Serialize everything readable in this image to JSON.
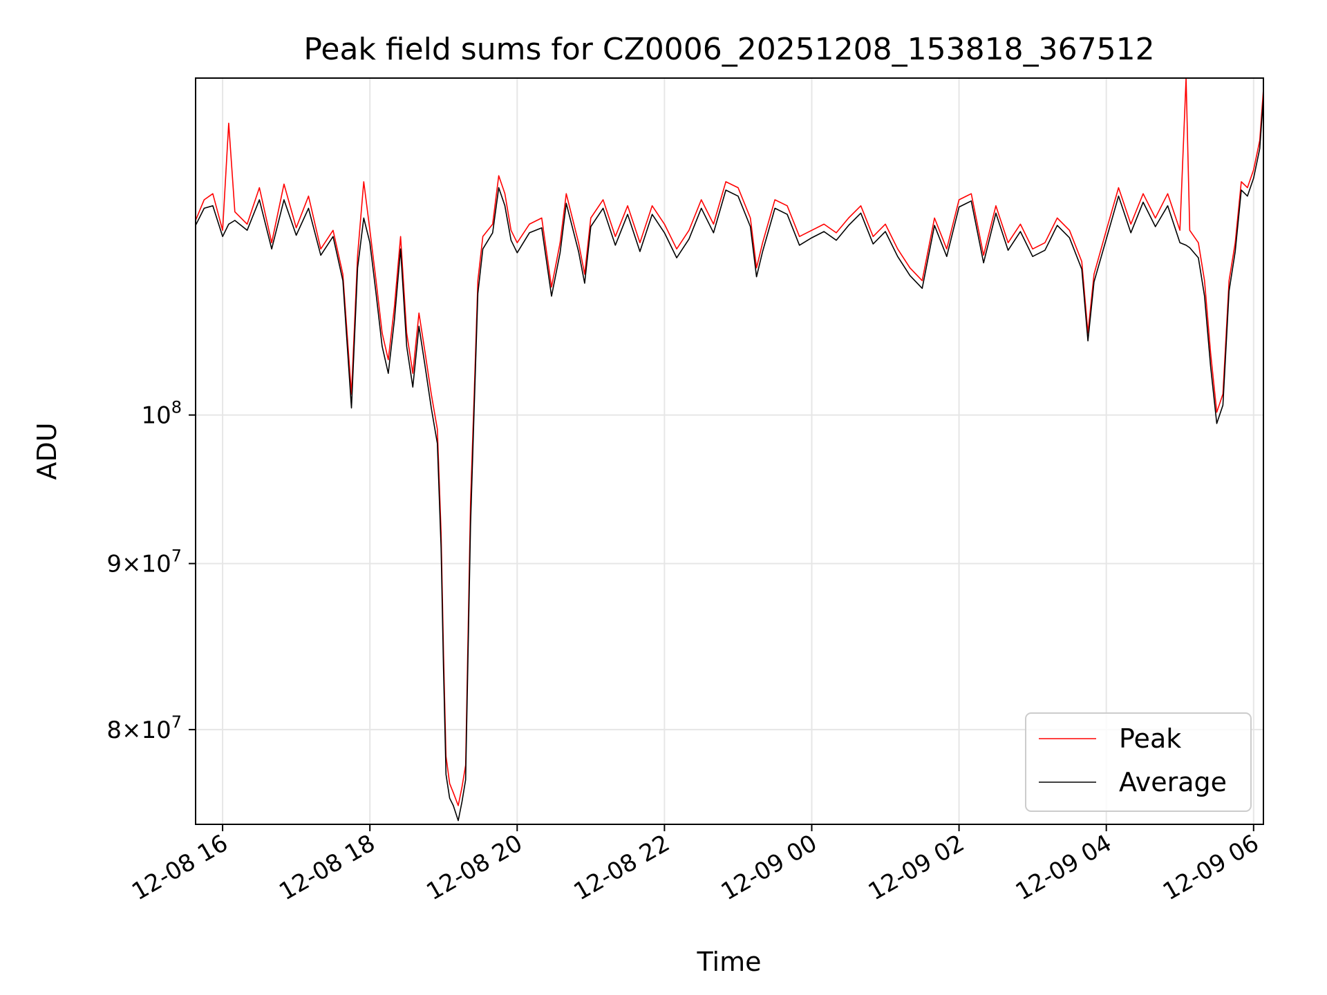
{
  "chart_data": {
    "type": "line",
    "title": "Peak field sums for CZ0006_20251208_153818_367512",
    "xlabel": "Time",
    "ylabel": "ADU",
    "yscale": "log",
    "x_ticks": [
      "12-08 16",
      "12-08 18",
      "12-08 20",
      "12-08 22",
      "12-09 00",
      "12-09 02",
      "12-09 04",
      "12-09 06"
    ],
    "y_ticks": [
      {
        "base": "8",
        "times": "×",
        "ten": "10",
        "exp": "7",
        "value": 80000000
      },
      {
        "base": "9",
        "times": "×",
        "ten": "10",
        "exp": "7",
        "value": 90000000
      },
      {
        "base": "",
        "times": "",
        "ten": "10",
        "exp": "8",
        "value": 100000000
      }
    ],
    "xlim": [
      "2025-12-08 15:38",
      "2025-12-09 06:08"
    ],
    "ylim": [
      74800000,
      127000000
    ],
    "grid": true,
    "legend_position": "lower right",
    "series": [
      {
        "name": "Peak",
        "color": "#ff0000",
        "points": [
          [
            "2025-12-08 15:38",
            114800000
          ],
          [
            "2025-12-08 15:45",
            116500000
          ],
          [
            "2025-12-08 15:52",
            117000000
          ],
          [
            "2025-12-08 16:00",
            114000000
          ],
          [
            "2025-12-08 16:05",
            123000000
          ],
          [
            "2025-12-08 16:10",
            115500000
          ],
          [
            "2025-12-08 16:20",
            114500000
          ],
          [
            "2025-12-08 16:30",
            117500000
          ],
          [
            "2025-12-08 16:40",
            113000000
          ],
          [
            "2025-12-08 16:50",
            117800000
          ],
          [
            "2025-12-08 17:00",
            114200000
          ],
          [
            "2025-12-08 17:10",
            116800000
          ],
          [
            "2025-12-08 17:20",
            112500000
          ],
          [
            "2025-12-08 17:30",
            114000000
          ],
          [
            "2025-12-08 17:38",
            110500000
          ],
          [
            "2025-12-08 17:45",
            101500000
          ],
          [
            "2025-12-08 17:50",
            112000000
          ],
          [
            "2025-12-08 17:55",
            118000000
          ],
          [
            "2025-12-08 18:00",
            114000000
          ],
          [
            "2025-12-08 18:05",
            110000000
          ],
          [
            "2025-12-08 18:10",
            106000000
          ],
          [
            "2025-12-08 18:15",
            104000000
          ],
          [
            "2025-12-08 18:20",
            108000000
          ],
          [
            "2025-12-08 18:25",
            113500000
          ],
          [
            "2025-12-08 18:30",
            106000000
          ],
          [
            "2025-12-08 18:35",
            103000000
          ],
          [
            "2025-12-08 18:40",
            107500000
          ],
          [
            "2025-12-08 18:45",
            104500000
          ],
          [
            "2025-12-08 18:50",
            101500000
          ],
          [
            "2025-12-08 18:55",
            99000000
          ],
          [
            "2025-12-08 18:58",
            92000000
          ],
          [
            "2025-12-08 19:00",
            84500000
          ],
          [
            "2025-12-08 19:02",
            78500000
          ],
          [
            "2025-12-08 19:05",
            77000000
          ],
          [
            "2025-12-08 19:08",
            76500000
          ],
          [
            "2025-12-08 19:12",
            75800000
          ],
          [
            "2025-12-08 19:15",
            76800000
          ],
          [
            "2025-12-08 19:18",
            78000000
          ],
          [
            "2025-12-08 19:22",
            94000000
          ],
          [
            "2025-12-08 19:25",
            101500000
          ],
          [
            "2025-12-08 19:28",
            110000000
          ],
          [
            "2025-12-08 19:32",
            113500000
          ],
          [
            "2025-12-08 19:40",
            114500000
          ],
          [
            "2025-12-08 19:45",
            118500000
          ],
          [
            "2025-12-08 19:50",
            117000000
          ],
          [
            "2025-12-08 19:55",
            114000000
          ],
          [
            "2025-12-08 20:00",
            113000000
          ],
          [
            "2025-12-08 20:10",
            114500000
          ],
          [
            "2025-12-08 20:20",
            115000000
          ],
          [
            "2025-12-08 20:28",
            109500000
          ],
          [
            "2025-12-08 20:35",
            113000000
          ],
          [
            "2025-12-08 20:40",
            117000000
          ],
          [
            "2025-12-08 20:50",
            113000000
          ],
          [
            "2025-12-08 20:55",
            110500000
          ],
          [
            "2025-12-08 21:00",
            115000000
          ],
          [
            "2025-12-08 21:10",
            116500000
          ],
          [
            "2025-12-08 21:20",
            113500000
          ],
          [
            "2025-12-08 21:30",
            116000000
          ],
          [
            "2025-12-08 21:40",
            113000000
          ],
          [
            "2025-12-08 21:50",
            116000000
          ],
          [
            "2025-12-08 22:00",
            114500000
          ],
          [
            "2025-12-08 22:10",
            112500000
          ],
          [
            "2025-12-08 22:20",
            114000000
          ],
          [
            "2025-12-08 22:30",
            116500000
          ],
          [
            "2025-12-08 22:40",
            114500000
          ],
          [
            "2025-12-08 22:50",
            118000000
          ],
          [
            "2025-12-08 23:00",
            117500000
          ],
          [
            "2025-12-08 23:10",
            115000000
          ],
          [
            "2025-12-08 23:15",
            111000000
          ],
          [
            "2025-12-08 23:20",
            113000000
          ],
          [
            "2025-12-08 23:30",
            116500000
          ],
          [
            "2025-12-08 23:40",
            116000000
          ],
          [
            "2025-12-08 23:50",
            113500000
          ],
          [
            "2025-12-09 00:00",
            114000000
          ],
          [
            "2025-12-09 00:10",
            114500000
          ],
          [
            "2025-12-09 00:20",
            113800000
          ],
          [
            "2025-12-09 00:30",
            115000000
          ],
          [
            "2025-12-09 00:40",
            116000000
          ],
          [
            "2025-12-09 00:50",
            113500000
          ],
          [
            "2025-12-09 01:00",
            114500000
          ],
          [
            "2025-12-09 01:10",
            112500000
          ],
          [
            "2025-12-09 01:20",
            111000000
          ],
          [
            "2025-12-09 01:30",
            110000000
          ],
          [
            "2025-12-09 01:40",
            115000000
          ],
          [
            "2025-12-09 01:50",
            112500000
          ],
          [
            "2025-12-09 02:00",
            116500000
          ],
          [
            "2025-12-09 02:10",
            117000000
          ],
          [
            "2025-12-09 02:20",
            112000000
          ],
          [
            "2025-12-09 02:30",
            116000000
          ],
          [
            "2025-12-09 02:40",
            113000000
          ],
          [
            "2025-12-09 02:50",
            114500000
          ],
          [
            "2025-12-09 03:00",
            112500000
          ],
          [
            "2025-12-09 03:10",
            113000000
          ],
          [
            "2025-12-09 03:20",
            115000000
          ],
          [
            "2025-12-09 03:30",
            114000000
          ],
          [
            "2025-12-09 03:40",
            111500000
          ],
          [
            "2025-12-09 03:45",
            106000000
          ],
          [
            "2025-12-09 03:50",
            110500000
          ],
          [
            "2025-12-09 04:00",
            114000000
          ],
          [
            "2025-12-09 04:10",
            117500000
          ],
          [
            "2025-12-09 04:20",
            114500000
          ],
          [
            "2025-12-09 04:30",
            117000000
          ],
          [
            "2025-12-09 04:40",
            115000000
          ],
          [
            "2025-12-09 04:50",
            117000000
          ],
          [
            "2025-12-09 05:00",
            114000000
          ],
          [
            "2025-12-09 05:05",
            127000000
          ],
          [
            "2025-12-09 05:08",
            114000000
          ],
          [
            "2025-12-09 05:15",
            113000000
          ],
          [
            "2025-12-09 05:20",
            110000000
          ],
          [
            "2025-12-09 05:25",
            104500000
          ],
          [
            "2025-12-09 05:30",
            100200000
          ],
          [
            "2025-12-09 05:35",
            101500000
          ],
          [
            "2025-12-09 05:40",
            110000000
          ],
          [
            "2025-12-09 05:45",
            113000000
          ],
          [
            "2025-12-09 05:50",
            118000000
          ],
          [
            "2025-12-09 05:55",
            117500000
          ],
          [
            "2025-12-09 06:00",
            119000000
          ],
          [
            "2025-12-09 06:05",
            121500000
          ],
          [
            "2025-12-09 06:08",
            126000000
          ]
        ]
      },
      {
        "name": "Average",
        "color": "#000000",
        "points": [
          [
            "2025-12-08 15:38",
            114400000
          ],
          [
            "2025-12-08 15:45",
            115800000
          ],
          [
            "2025-12-08 15:52",
            116000000
          ],
          [
            "2025-12-08 16:00",
            113500000
          ],
          [
            "2025-12-08 16:05",
            114500000
          ],
          [
            "2025-12-08 16:10",
            114800000
          ],
          [
            "2025-12-08 16:20",
            114000000
          ],
          [
            "2025-12-08 16:30",
            116500000
          ],
          [
            "2025-12-08 16:40",
            112500000
          ],
          [
            "2025-12-08 16:50",
            116500000
          ],
          [
            "2025-12-08 17:00",
            113600000
          ],
          [
            "2025-12-08 17:10",
            115800000
          ],
          [
            "2025-12-08 17:20",
            112000000
          ],
          [
            "2025-12-08 17:30",
            113500000
          ],
          [
            "2025-12-08 17:38",
            110000000
          ],
          [
            "2025-12-08 17:45",
            100500000
          ],
          [
            "2025-12-08 17:50",
            111000000
          ],
          [
            "2025-12-08 17:55",
            115000000
          ],
          [
            "2025-12-08 18:00",
            113000000
          ],
          [
            "2025-12-08 18:05",
            109000000
          ],
          [
            "2025-12-08 18:10",
            105000000
          ],
          [
            "2025-12-08 18:15",
            103000000
          ],
          [
            "2025-12-08 18:20",
            107000000
          ],
          [
            "2025-12-08 18:25",
            112500000
          ],
          [
            "2025-12-08 18:30",
            105000000
          ],
          [
            "2025-12-08 18:35",
            102000000
          ],
          [
            "2025-12-08 18:40",
            106500000
          ],
          [
            "2025-12-08 18:45",
            103500000
          ],
          [
            "2025-12-08 18:50",
            100500000
          ],
          [
            "2025-12-08 18:55",
            98000000
          ],
          [
            "2025-12-08 18:58",
            91000000
          ],
          [
            "2025-12-08 19:00",
            83500000
          ],
          [
            "2025-12-08 19:02",
            77500000
          ],
          [
            "2025-12-08 19:05",
            76200000
          ],
          [
            "2025-12-08 19:08",
            75800000
          ],
          [
            "2025-12-08 19:12",
            75000000
          ],
          [
            "2025-12-08 19:15",
            76000000
          ],
          [
            "2025-12-08 19:18",
            77200000
          ],
          [
            "2025-12-08 19:22",
            92500000
          ],
          [
            "2025-12-08 19:25",
            100500000
          ],
          [
            "2025-12-08 19:28",
            109000000
          ],
          [
            "2025-12-08 19:32",
            112500000
          ],
          [
            "2025-12-08 19:40",
            113800000
          ],
          [
            "2025-12-08 19:45",
            117500000
          ],
          [
            "2025-12-08 19:50",
            116000000
          ],
          [
            "2025-12-08 19:55",
            113200000
          ],
          [
            "2025-12-08 20:00",
            112200000
          ],
          [
            "2025-12-08 20:10",
            113800000
          ],
          [
            "2025-12-08 20:20",
            114200000
          ],
          [
            "2025-12-08 20:28",
            108800000
          ],
          [
            "2025-12-08 20:35",
            112200000
          ],
          [
            "2025-12-08 20:40",
            116200000
          ],
          [
            "2025-12-08 20:50",
            112300000
          ],
          [
            "2025-12-08 20:55",
            109800000
          ],
          [
            "2025-12-08 21:00",
            114300000
          ],
          [
            "2025-12-08 21:10",
            115800000
          ],
          [
            "2025-12-08 21:20",
            112800000
          ],
          [
            "2025-12-08 21:30",
            115300000
          ],
          [
            "2025-12-08 21:40",
            112300000
          ],
          [
            "2025-12-08 21:50",
            115300000
          ],
          [
            "2025-12-08 22:00",
            113800000
          ],
          [
            "2025-12-08 22:10",
            111800000
          ],
          [
            "2025-12-08 22:20",
            113300000
          ],
          [
            "2025-12-08 22:30",
            115800000
          ],
          [
            "2025-12-08 22:40",
            113800000
          ],
          [
            "2025-12-08 22:50",
            117300000
          ],
          [
            "2025-12-08 23:00",
            116800000
          ],
          [
            "2025-12-08 23:10",
            114300000
          ],
          [
            "2025-12-08 23:15",
            110300000
          ],
          [
            "2025-12-08 23:20",
            112300000
          ],
          [
            "2025-12-08 23:30",
            115800000
          ],
          [
            "2025-12-08 23:40",
            115300000
          ],
          [
            "2025-12-08 23:50",
            112800000
          ],
          [
            "2025-12-09 00:00",
            113400000
          ],
          [
            "2025-12-09 00:10",
            113900000
          ],
          [
            "2025-12-09 00:20",
            113200000
          ],
          [
            "2025-12-09 00:30",
            114400000
          ],
          [
            "2025-12-09 00:40",
            115400000
          ],
          [
            "2025-12-09 00:50",
            112900000
          ],
          [
            "2025-12-09 01:00",
            113900000
          ],
          [
            "2025-12-09 01:10",
            111900000
          ],
          [
            "2025-12-09 01:20",
            110400000
          ],
          [
            "2025-12-09 01:30",
            109400000
          ],
          [
            "2025-12-09 01:40",
            114400000
          ],
          [
            "2025-12-09 01:50",
            111900000
          ],
          [
            "2025-12-09 02:00",
            115900000
          ],
          [
            "2025-12-09 02:10",
            116400000
          ],
          [
            "2025-12-09 02:20",
            111400000
          ],
          [
            "2025-12-09 02:30",
            115400000
          ],
          [
            "2025-12-09 02:40",
            112400000
          ],
          [
            "2025-12-09 02:50",
            113900000
          ],
          [
            "2025-12-09 03:00",
            111900000
          ],
          [
            "2025-12-09 03:10",
            112400000
          ],
          [
            "2025-12-09 03:20",
            114400000
          ],
          [
            "2025-12-09 03:30",
            113400000
          ],
          [
            "2025-12-09 03:40",
            110900000
          ],
          [
            "2025-12-09 03:45",
            105400000
          ],
          [
            "2025-12-09 03:50",
            109900000
          ],
          [
            "2025-12-09 04:00",
            113300000
          ],
          [
            "2025-12-09 04:10",
            116800000
          ],
          [
            "2025-12-09 04:20",
            113800000
          ],
          [
            "2025-12-09 04:30",
            116300000
          ],
          [
            "2025-12-09 04:40",
            114300000
          ],
          [
            "2025-12-09 04:50",
            116000000
          ],
          [
            "2025-12-09 05:00",
            113000000
          ],
          [
            "2025-12-09 05:05",
            112800000
          ],
          [
            "2025-12-09 05:08",
            112600000
          ],
          [
            "2025-12-09 05:15",
            111800000
          ],
          [
            "2025-12-09 05:20",
            108800000
          ],
          [
            "2025-12-09 05:25",
            103500000
          ],
          [
            "2025-12-09 05:30",
            99400000
          ],
          [
            "2025-12-09 05:35",
            100700000
          ],
          [
            "2025-12-09 05:40",
            109200000
          ],
          [
            "2025-12-09 05:45",
            112300000
          ],
          [
            "2025-12-09 05:50",
            117300000
          ],
          [
            "2025-12-09 05:55",
            116800000
          ],
          [
            "2025-12-09 06:00",
            118300000
          ],
          [
            "2025-12-09 06:05",
            120800000
          ],
          [
            "2025-12-09 06:08",
            125300000
          ]
        ]
      }
    ]
  }
}
